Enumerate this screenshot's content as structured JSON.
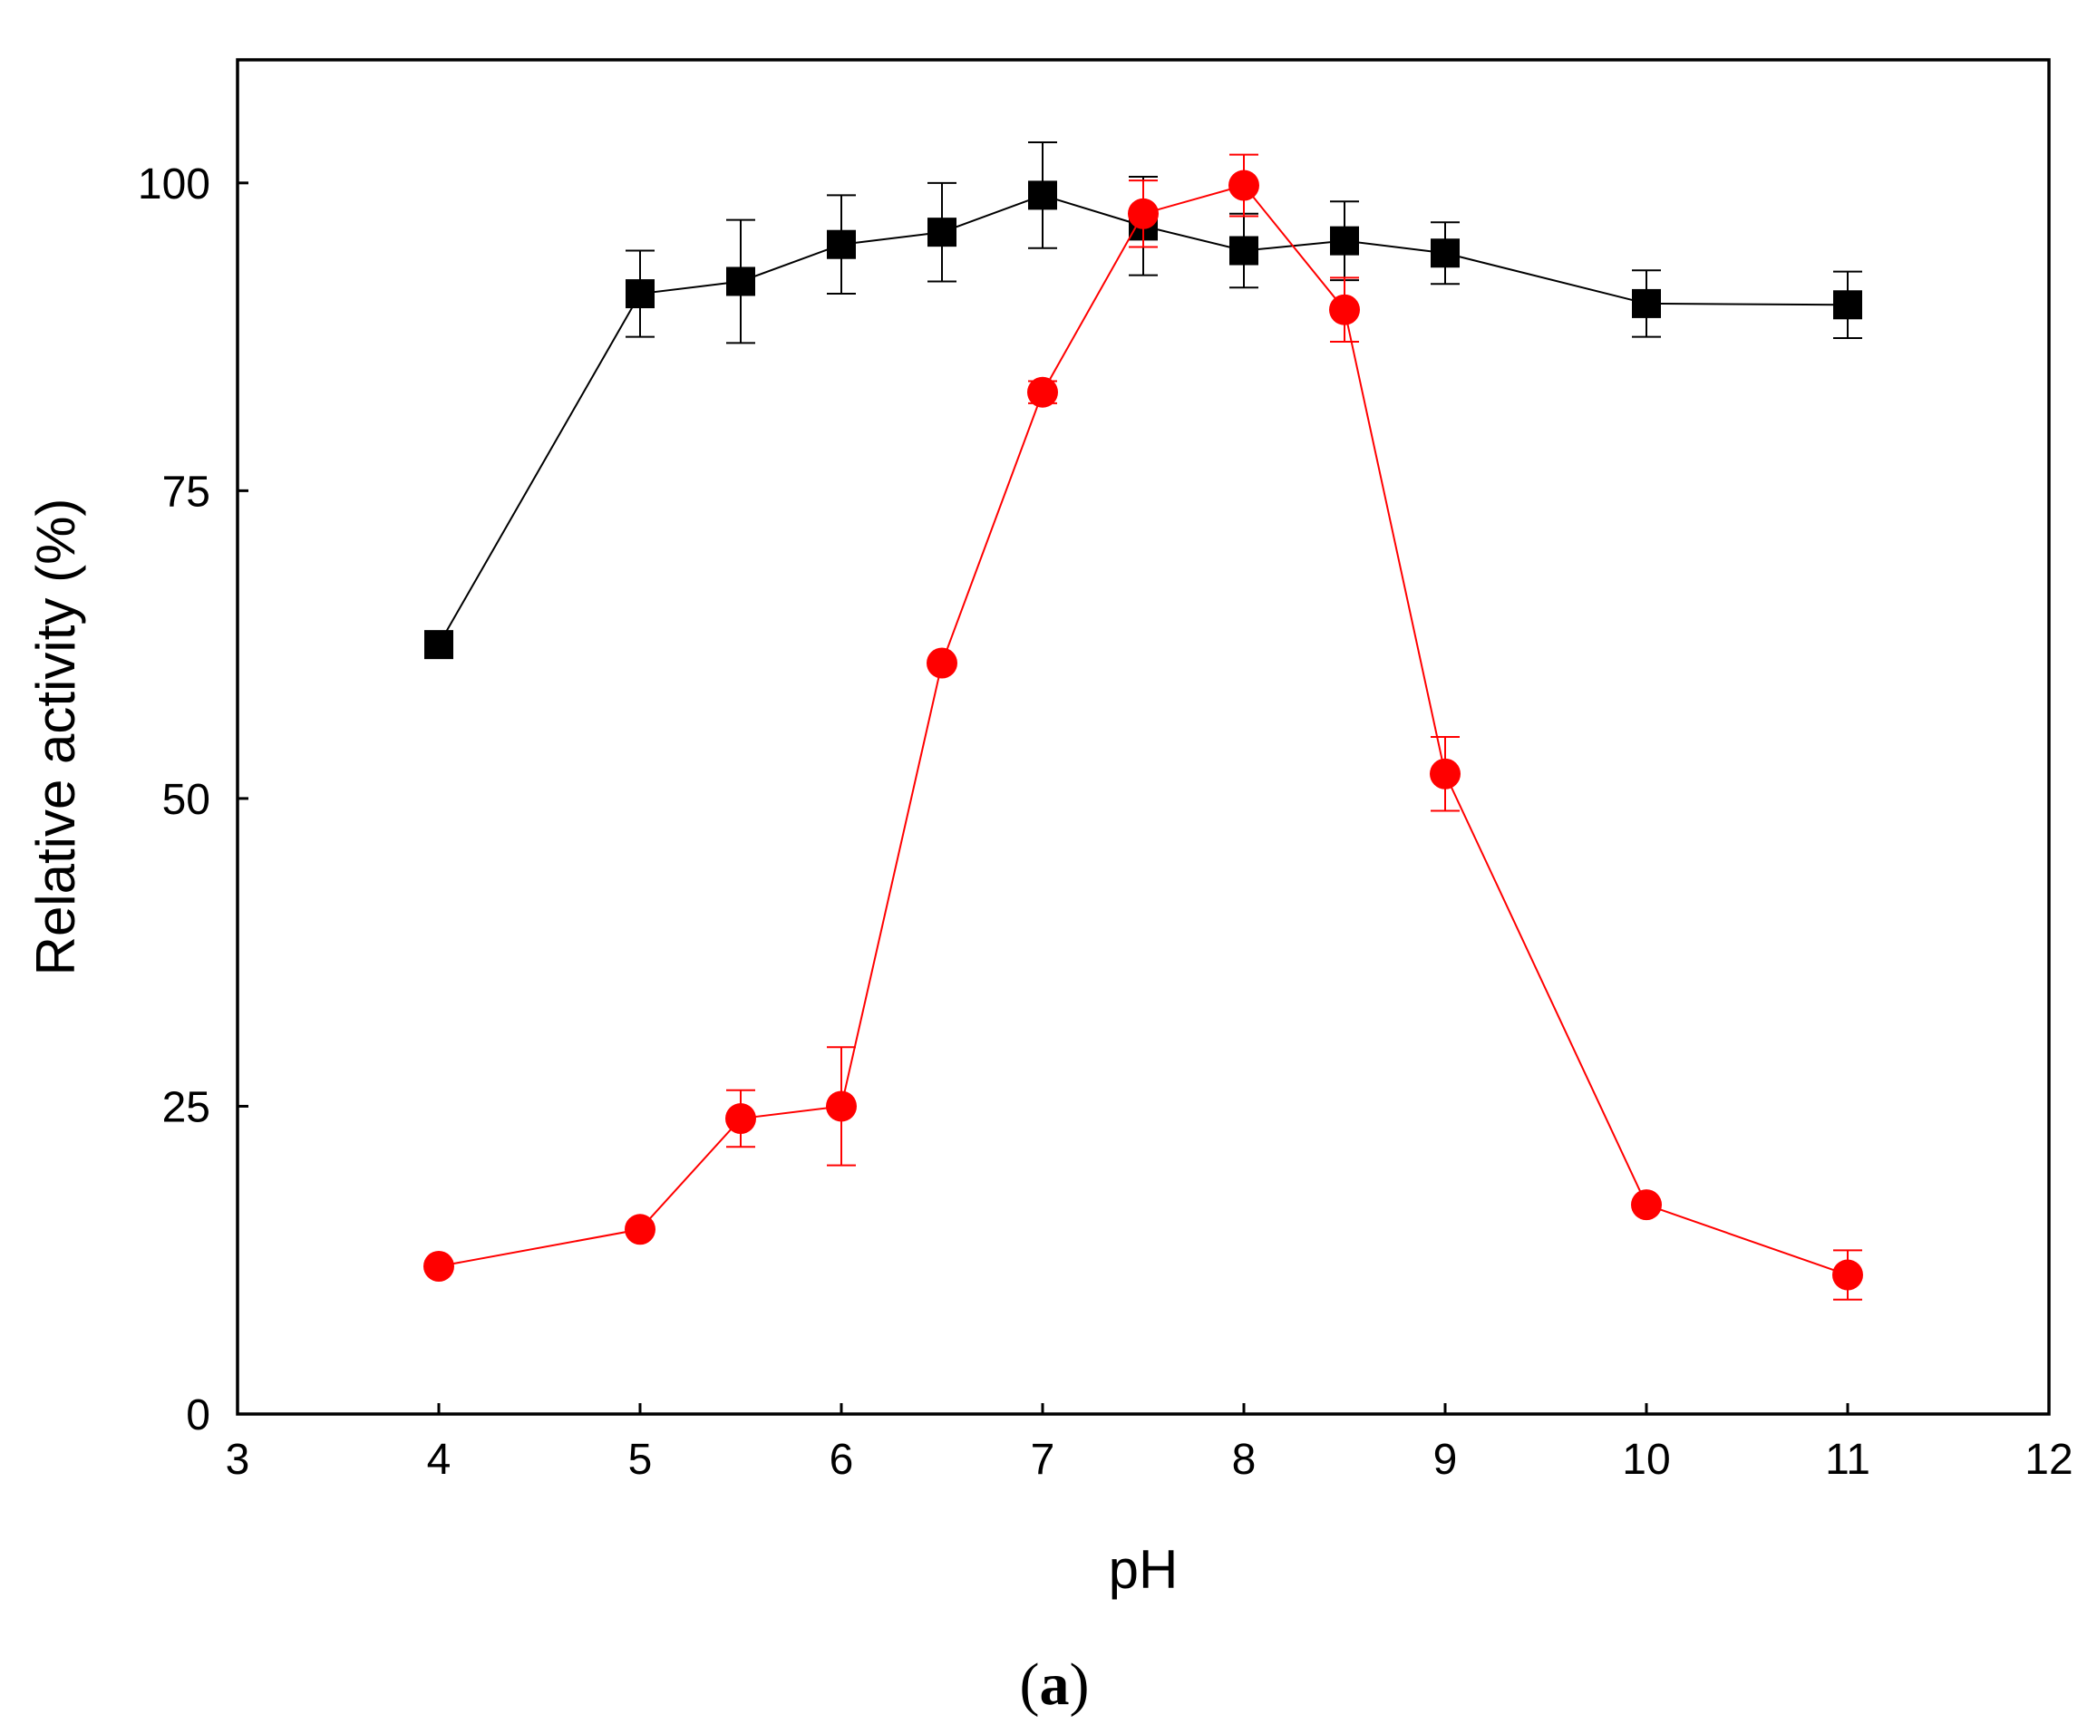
{
  "chart_data": {
    "type": "line",
    "title": "",
    "panel_label": {
      "open": "(",
      "letter": "a",
      "close": ")"
    },
    "xlabel": "pH",
    "ylabel": "Relative activity (%)",
    "xlim": [
      3,
      12
    ],
    "ylim": [
      0,
      110
    ],
    "x_ticks": [
      3,
      4,
      5,
      6,
      7,
      8,
      9,
      10,
      11,
      12
    ],
    "y_ticks": [
      0,
      25,
      50,
      75,
      100
    ],
    "grid": false,
    "legend": "none",
    "series": [
      {
        "marker": "square",
        "color": "#000000",
        "points": [
          {
            "x": 4,
            "y": 62.5,
            "err": 0
          },
          {
            "x": 5,
            "y": 91,
            "err": 3.5
          },
          {
            "x": 5.5,
            "y": 92,
            "err": 5
          },
          {
            "x": 6,
            "y": 95,
            "err": 4
          },
          {
            "x": 6.5,
            "y": 96,
            "err": 4
          },
          {
            "x": 7,
            "y": 99,
            "err": 4.3
          },
          {
            "x": 7.5,
            "y": 96.5,
            "err": 4
          },
          {
            "x": 8,
            "y": 94.5,
            "err": 3
          },
          {
            "x": 8.5,
            "y": 95.3,
            "err": 3.2
          },
          {
            "x": 9,
            "y": 94.3,
            "err": 2.5
          },
          {
            "x": 10,
            "y": 90.2,
            "err": 2.7
          },
          {
            "x": 11,
            "y": 90.1,
            "err": 2.7
          }
        ]
      },
      {
        "marker": "circle",
        "color": "#ff0000",
        "points": [
          {
            "x": 4,
            "y": 12,
            "err": 0
          },
          {
            "x": 5,
            "y": 15,
            "err": 0
          },
          {
            "x": 5.5,
            "y": 24,
            "err": 2.3
          },
          {
            "x": 6,
            "y": 25,
            "err": 4.8
          },
          {
            "x": 6.5,
            "y": 61,
            "err": 0
          },
          {
            "x": 7,
            "y": 83,
            "err": 0.9
          },
          {
            "x": 7.5,
            "y": 97.5,
            "err": 2.7
          },
          {
            "x": 8,
            "y": 99.8,
            "err": 2.5
          },
          {
            "x": 8.5,
            "y": 89.7,
            "err": 2.6
          },
          {
            "x": 9,
            "y": 52,
            "err": 3
          },
          {
            "x": 10,
            "y": 17,
            "err": 0
          },
          {
            "x": 11,
            "y": 11.3,
            "err": 2
          }
        ]
      }
    ]
  }
}
